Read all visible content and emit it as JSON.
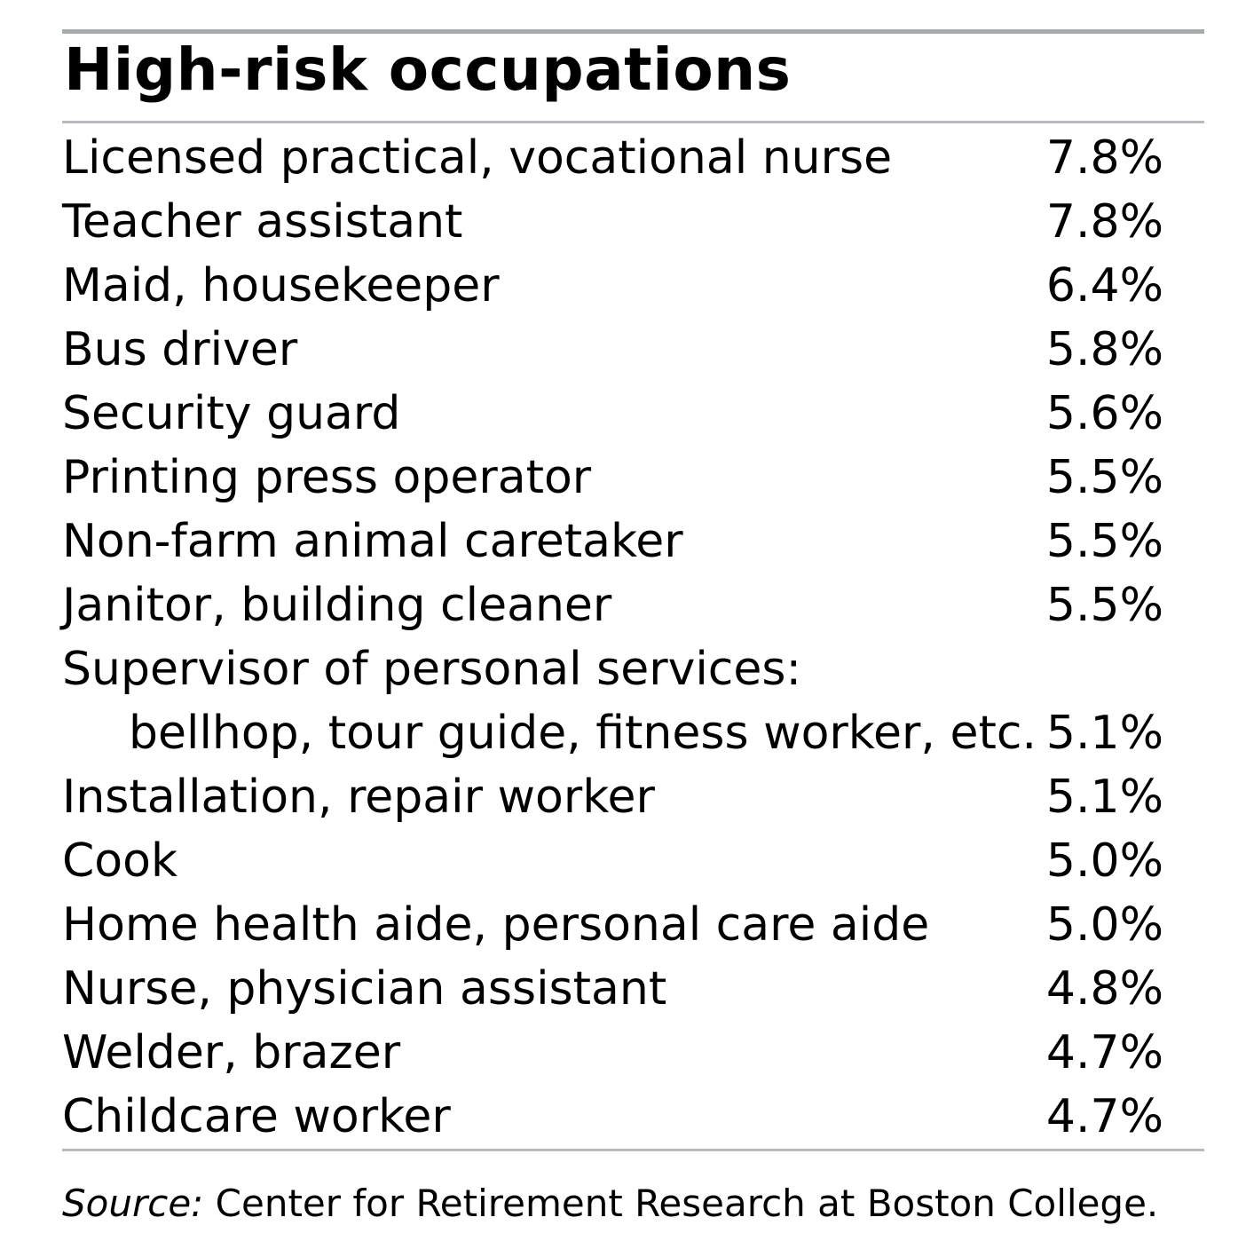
{
  "figure": {
    "title": "High-risk occupations",
    "source_prefix": "Source:",
    "source_text": " Center for Retirement Research at Boston College.",
    "colors": {
      "background": "#ffffff",
      "text": "#000000",
      "rule_top": "#a7abae",
      "rule_light": "#b7b9bc"
    }
  },
  "table": {
    "rows": [
      {
        "label": "Licensed practical, vocational nurse",
        "value": "7.8%",
        "indent": false
      },
      {
        "label": "Teacher assistant",
        "value": "7.8%",
        "indent": false
      },
      {
        "label": "Maid, housekeeper",
        "value": "6.4%",
        "indent": false
      },
      {
        "label": "Bus driver",
        "value": "5.8%",
        "indent": false
      },
      {
        "label": "Security guard",
        "value": "5.6%",
        "indent": false
      },
      {
        "label": "Printing press operator",
        "value": "5.5%",
        "indent": false
      },
      {
        "label": "Non-farm animal caretaker",
        "value": "5.5%",
        "indent": false
      },
      {
        "label": "Janitor, building cleaner",
        "value": "5.5%",
        "indent": false
      },
      {
        "label": "Supervisor of personal services:",
        "value": "",
        "indent": false
      },
      {
        "label": "bellhop, tour guide, fitness worker, etc.",
        "value": "5.1%",
        "indent": true
      },
      {
        "label": "Installation, repair worker",
        "value": "5.1%",
        "indent": false
      },
      {
        "label": "Cook",
        "value": "5.0%",
        "indent": false
      },
      {
        "label": "Home health aide, personal care aide",
        "value": "5.0%",
        "indent": false
      },
      {
        "label": "Nurse, physician assistant",
        "value": "4.8%",
        "indent": false
      },
      {
        "label": "Welder, brazer",
        "value": "4.7%",
        "indent": false
      },
      {
        "label": "Childcare worker",
        "value": "4.7%",
        "indent": false
      }
    ]
  },
  "chart_data": {
    "type": "table",
    "title": "High-risk occupations",
    "categories": [
      "Licensed practical, vocational nurse",
      "Teacher assistant",
      "Maid, housekeeper",
      "Bus driver",
      "Security guard",
      "Printing press operator",
      "Non-farm animal caretaker",
      "Janitor, building cleaner",
      "Supervisor of personal services: bellhop, tour guide, fitness worker, etc.",
      "Installation, repair worker",
      "Cook",
      "Home health aide, personal care aide",
      "Nurse, physician assistant",
      "Welder, brazer",
      "Childcare worker"
    ],
    "values": [
      7.8,
      7.8,
      6.4,
      5.8,
      5.6,
      5.5,
      5.5,
      5.5,
      5.1,
      5.1,
      5.0,
      5.0,
      4.8,
      4.7,
      4.7
    ],
    "unit": "%",
    "source": "Source: Center for Retirement Research at Boston College."
  }
}
